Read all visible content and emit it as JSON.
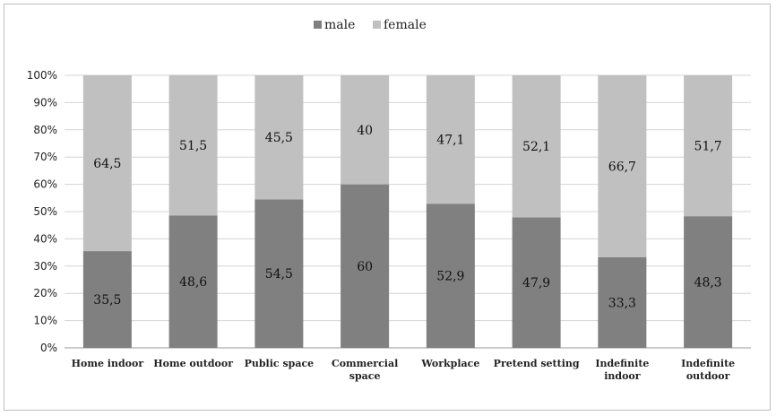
{
  "chart_data": {
    "type": "bar",
    "stacked": true,
    "percent_stacked": true,
    "categories": [
      [
        "Home indoor"
      ],
      [
        "Home outdoor"
      ],
      [
        "Public space"
      ],
      [
        "Commercial",
        "space"
      ],
      [
        "Workplace"
      ],
      [
        "Pretend setting"
      ],
      [
        "Indefinite",
        "indoor"
      ],
      [
        "Indefinite",
        "outdoor"
      ]
    ],
    "series": [
      {
        "name": "male",
        "color": "#808080",
        "values": [
          35.5,
          48.6,
          54.5,
          60,
          52.9,
          47.9,
          33.3,
          48.3
        ],
        "labels": [
          "35,5",
          "48,6",
          "54,5",
          "60",
          "52,9",
          "47,9",
          "33,3",
          "48,3"
        ]
      },
      {
        "name": "female",
        "color": "#c0c0c0",
        "values": [
          64.5,
          51.5,
          45.5,
          40,
          47.1,
          52.1,
          66.7,
          51.7
        ],
        "labels": [
          "64,5",
          "51,5",
          "45,5",
          "40",
          "47,1",
          "52,1",
          "66,7",
          "51,7"
        ]
      }
    ],
    "ylim": [
      0,
      100
    ],
    "yticks": [
      "0%",
      "10%",
      "20%",
      "30%",
      "40%",
      "50%",
      "60%",
      "70%",
      "80%",
      "90%",
      "100%"
    ],
    "grid": true,
    "legend": "top-center",
    "title": "",
    "xlabel": "",
    "ylabel": ""
  }
}
